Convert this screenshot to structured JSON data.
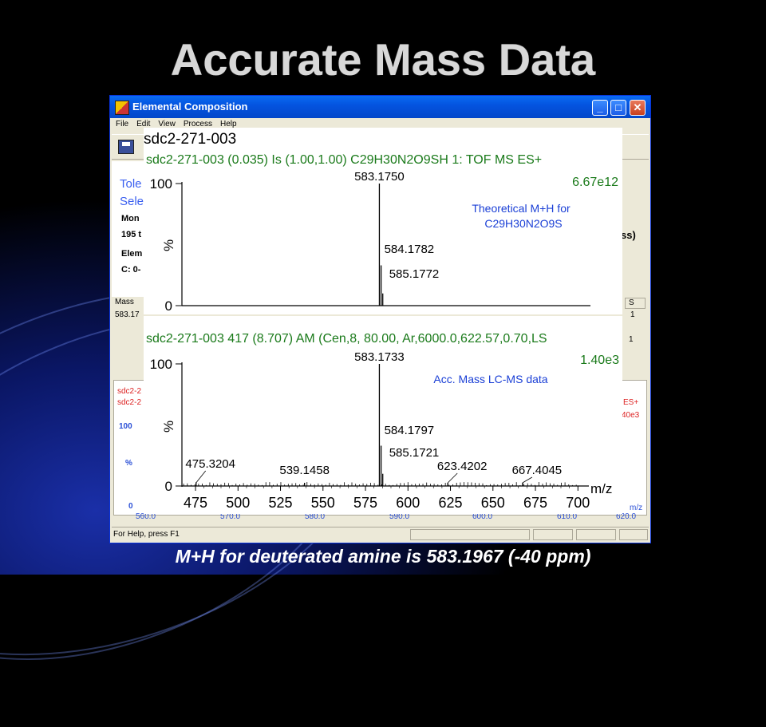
{
  "slide": {
    "title": "Accurate Mass Data",
    "caption": "M+H for deuterated amine is 583.1967 (-40 ppm)"
  },
  "window": {
    "title": "Elemental Composition",
    "menu": [
      "File",
      "Edit",
      "View",
      "Process",
      "Help"
    ],
    "buttons": {
      "minimize": "_",
      "maximize": "□",
      "close": "✕"
    },
    "left_panel": {
      "line1": "Tole",
      "line2": "Sele",
      "line3": "Mon",
      "line4": "195 t",
      "line5": "Elem",
      "line6": "C: 0-"
    },
    "right_text": "ss)",
    "table": {
      "header_mass": "Mass",
      "header_s": "S",
      "row_mass": "583.17",
      "row_s": "1",
      "row_s2": "1"
    },
    "lower_panel": {
      "red1": "sdc2-2",
      "red2": "sdc2-2",
      "red_right1": "ES+",
      "red_right2": "40e3",
      "y100": "100",
      "ypct": "%",
      "y0": "0",
      "mz": "m/z"
    },
    "bottom_axis": [
      "560.0",
      "570.0",
      "580.0",
      "590.0",
      "600.0",
      "610.0",
      "620.0"
    ],
    "status": "For Help, press F1",
    "icons": {
      "app": "elemental-composition-app-icon",
      "save": "floppy-disk-icon"
    }
  },
  "spectra": [
    {
      "name_line": "sdc2-271-003",
      "header": "sdc2-271-003  (0.035) Is (1.00,1.00) C29H30N2O9SH 1: TOF MS ES+",
      "intensity": "6.67e12",
      "note_line1": "Theoretical M+H for",
      "note_line2": "C29H30N2O9S",
      "y_top": "100",
      "y_mid": "%",
      "y_bottom": "0",
      "peak_labels": [
        "583.1750",
        "584.1782",
        "585.1772"
      ]
    },
    {
      "header": "sdc2-271-003 417 (8.707) AM (Cen,8, 80.00, Ar,6000.0,622.57,0.70,LS",
      "intensity": "1.40e3",
      "note_line1": "Acc. Mass LC-MS data",
      "y_top": "100",
      "y_mid": "%",
      "y_bottom": "0",
      "x_label": "m/z",
      "x_ticks": [
        "475",
        "500",
        "525",
        "550",
        "575",
        "600",
        "625",
        "650",
        "675",
        "700"
      ],
      "peak_labels": [
        "583.1733",
        "475.3204",
        "539.1458",
        "584.1797",
        "585.1721",
        "623.4202",
        "667.4045"
      ]
    }
  ],
  "chart_data": [
    {
      "type": "bar",
      "title": "sdc2-271-003",
      "x": [
        583.175,
        584.1782,
        585.1772
      ],
      "values": [
        100,
        33,
        10
      ],
      "xlim": [
        465,
        705
      ],
      "ylim": [
        0,
        100
      ]
    },
    {
      "type": "bar",
      "title": "sdc2-271-003 417 (8.707) AM (Cen,8, 80.00, Ar,6000.0,622.57,0.70,LS",
      "x": [
        475.3204,
        539.1458,
        583.1733,
        584.1797,
        585.1721,
        623.4202,
        667.4045
      ],
      "values": [
        3,
        2,
        100,
        33,
        10,
        2,
        2
      ],
      "xlim": [
        465,
        705
      ],
      "ylim": [
        0,
        100
      ]
    }
  ]
}
